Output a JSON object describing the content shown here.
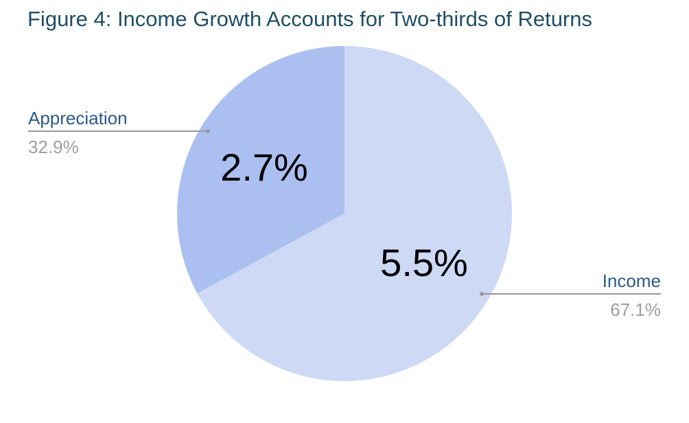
{
  "chart_data": {
    "type": "pie",
    "title": "Figure 4: Income Growth Accounts for Two-thirds of Returns",
    "slices": [
      {
        "name": "Income",
        "value_label": "5.5%",
        "value": 5.5,
        "percent": 67.1,
        "percent_label": "67.1%",
        "color": "#cdd9f5"
      },
      {
        "name": "Appreciation",
        "value_label": "2.7%",
        "value": 2.7,
        "percent": 32.9,
        "percent_label": "32.9%",
        "color": "#abc0f0"
      }
    ],
    "leader_line_color": "#999999",
    "legend": "callout labels beside slices"
  }
}
